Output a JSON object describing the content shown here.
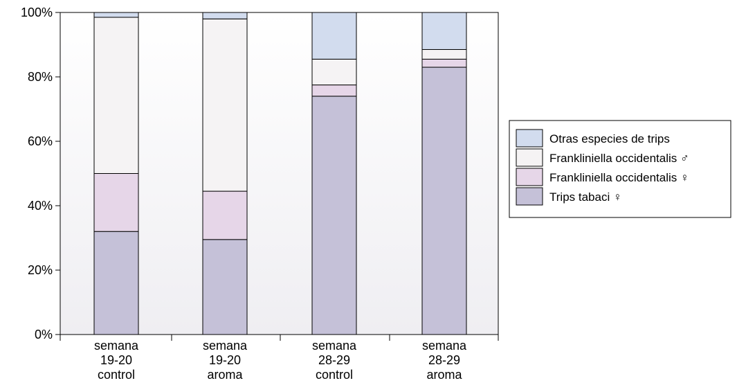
{
  "chart_data": {
    "type": "bar",
    "stacked": true,
    "percent": true,
    "categories": [
      [
        "semana",
        "19-20",
        "control"
      ],
      [
        "semana",
        "19-20",
        "aroma"
      ],
      [
        "semana",
        "28-29",
        "control"
      ],
      [
        "semana",
        "28-29",
        "aroma"
      ]
    ],
    "series": [
      {
        "name": "Trips tabaci ♀",
        "color": "#c5c1d8",
        "values": [
          32,
          29.5,
          74,
          83
        ]
      },
      {
        "name": "Frankliniella occidentalis ♀",
        "color": "#e6d6e8",
        "values": [
          18,
          15,
          3.5,
          2.5
        ]
      },
      {
        "name": "Frankliniella occidentalis ♂",
        "color": "#f5f3f4",
        "values": [
          48.5,
          53.5,
          8,
          3
        ]
      },
      {
        "name": "Otras especies de trips",
        "color": "#d2dcee",
        "values": [
          1.5,
          2,
          14.5,
          11.5
        ]
      }
    ],
    "legend_order": [
      3,
      2,
      1,
      0
    ],
    "yticks": [
      "0%",
      "20%",
      "40%",
      "60%",
      "80%",
      "100%"
    ],
    "ylim": [
      0,
      100
    ],
    "legend_position": "right",
    "background_gradient": [
      "#ffffff",
      "#efeef2"
    ]
  }
}
